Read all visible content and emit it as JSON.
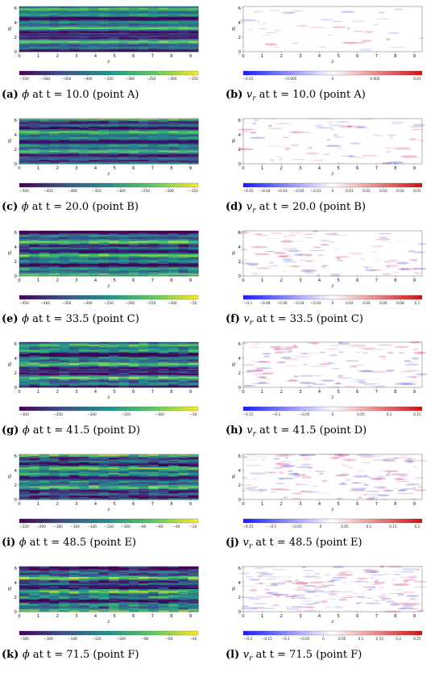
{
  "chart_data": [
    {
      "panel": "a",
      "type": "heatmap",
      "field": "phi",
      "title_prefix": "(a)",
      "var": "ϕ",
      "time": "10.0",
      "point": "A",
      "caption_rest": "at t = 10.0 (point A)",
      "xlabel": "z",
      "ylabel": "θ",
      "xticks": [
        "0",
        "1",
        "2",
        "3",
        "4",
        "5",
        "6",
        "7",
        "8",
        "9"
      ],
      "yticks": [
        "0",
        "2",
        "4",
        "6"
      ],
      "colorbar": {
        "colormap": "viridis",
        "ticks": [
          "−550",
          "−500",
          "−450",
          "−400",
          "−350",
          "−300",
          "−250",
          "−200",
          "−150"
        ]
      }
    },
    {
      "panel": "b",
      "type": "heatmap",
      "field": "v_r",
      "title_prefix": "(b)",
      "var": "v",
      "sub": "r",
      "caption_rest": "at t = 10.0 (point A)",
      "xlabel": "z",
      "ylabel": "θ",
      "xticks": [
        "0",
        "1",
        "2",
        "3",
        "4",
        "5",
        "6",
        "7",
        "8",
        "9"
      ],
      "yticks": [
        "0",
        "2",
        "4",
        "6"
      ],
      "colorbar": {
        "colormap": "bwr",
        "ticks": [
          "−0.01",
          "−0.005",
          "0",
          "0.005",
          "0.01"
        ]
      }
    },
    {
      "panel": "c",
      "type": "heatmap",
      "field": "phi",
      "title_prefix": "(c)",
      "var": "ϕ",
      "caption_rest": "at t = 20.0 (point B)",
      "xlabel": "z",
      "ylabel": "θ",
      "xticks": [
        "0",
        "1",
        "2",
        "3",
        "4",
        "5",
        "6",
        "7",
        "8",
        "9"
      ],
      "yticks": [
        "0",
        "2",
        "4",
        "6"
      ],
      "colorbar": {
        "colormap": "viridis",
        "ticks": [
          "−500",
          "−450",
          "−400",
          "−350",
          "−300",
          "−250",
          "−200",
          "−150"
        ]
      }
    },
    {
      "panel": "d",
      "type": "heatmap",
      "field": "v_r",
      "title_prefix": "(d)",
      "var": "v",
      "sub": "r",
      "caption_rest": "at t = 20.0 (point B)",
      "xlabel": "z",
      "ylabel": "θ",
      "xticks": [
        "0",
        "1",
        "2",
        "3",
        "4",
        "5",
        "6",
        "7",
        "8",
        "9"
      ],
      "yticks": [
        "0",
        "2",
        "4",
        "6"
      ],
      "colorbar": {
        "colormap": "bwr",
        "ticks": [
          "−0.05",
          "−0.04",
          "−0.03",
          "−0.02",
          "−0.01",
          "0",
          "0.01",
          "0.02",
          "0.03",
          "0.04",
          "0.05"
        ]
      }
    },
    {
      "panel": "e",
      "type": "heatmap",
      "field": "phi",
      "title_prefix": "(e)",
      "var": "ϕ",
      "caption_rest": "at t = 33.5 (point C)",
      "xlabel": "z",
      "ylabel": "θ",
      "xticks": [
        "0",
        "1",
        "2",
        "3",
        "4",
        "5",
        "6",
        "7",
        "8",
        "9"
      ],
      "yticks": [
        "0",
        "2",
        "4",
        "6"
      ],
      "colorbar": {
        "colormap": "viridis",
        "ticks": [
          "−450",
          "−400",
          "−350",
          "−300",
          "−250",
          "−200",
          "−150",
          "−100",
          "−50"
        ]
      }
    },
    {
      "panel": "f",
      "type": "heatmap",
      "field": "v_r",
      "title_prefix": "(f)",
      "var": "v",
      "sub": "r",
      "caption_rest": "at t = 33.5 (point C)",
      "xlabel": "z",
      "ylabel": "θ",
      "xticks": [
        "0",
        "1",
        "2",
        "3",
        "4",
        "5",
        "6",
        "7",
        "8",
        "9"
      ],
      "yticks": [
        "0",
        "2",
        "4",
        "6"
      ],
      "colorbar": {
        "colormap": "bwr",
        "ticks": [
          "−0.1",
          "−0.08",
          "−0.06",
          "−0.04",
          "−0.02",
          "0",
          "0.02",
          "0.04",
          "0.06",
          "0.08",
          "0.1"
        ]
      }
    },
    {
      "panel": "g",
      "type": "heatmap",
      "field": "phi",
      "title_prefix": "(g)",
      "var": "ϕ",
      "caption_rest": "at t = 41.5 (point D)",
      "xlabel": "z",
      "ylabel": "θ",
      "xticks": [
        "0",
        "1",
        "2",
        "3",
        "4",
        "5",
        "6",
        "7",
        "8",
        "9"
      ],
      "yticks": [
        "0",
        "2",
        "4",
        "6"
      ],
      "colorbar": {
        "colormap": "viridis",
        "ticks": [
          "−300",
          "−250",
          "−200",
          "−150",
          "−100",
          "−50"
        ]
      }
    },
    {
      "panel": "h",
      "type": "heatmap",
      "field": "v_r",
      "title_prefix": "(h)",
      "var": "v",
      "sub": "r",
      "caption_rest": "at t = 41.5 (point D)",
      "xlabel": "z",
      "ylabel": "θ",
      "xticks": [
        "0",
        "1",
        "2",
        "3",
        "4",
        "5",
        "6",
        "7",
        "8",
        "9"
      ],
      "yticks": [
        "0",
        "2",
        "4",
        "6"
      ],
      "colorbar": {
        "colormap": "bwr",
        "ticks": [
          "−0.15",
          "−0.1",
          "−0.05",
          "0",
          "0.05",
          "0.1",
          "0.15"
        ]
      }
    },
    {
      "panel": "i",
      "type": "heatmap",
      "field": "phi",
      "title_prefix": "(i)",
      "var": "ϕ",
      "caption_rest": "at t = 48.5 (point E)",
      "xlabel": "z",
      "ylabel": "θ",
      "xticks": [
        "0",
        "1",
        "2",
        "3",
        "4",
        "5",
        "6",
        "7",
        "8",
        "9"
      ],
      "yticks": [
        "0",
        "2",
        "4",
        "6"
      ],
      "colorbar": {
        "colormap": "viridis",
        "ticks": [
          "−220",
          "−200",
          "−180",
          "−160",
          "−140",
          "−120",
          "−100",
          "−80",
          "−60",
          "−40",
          "−20"
        ]
      }
    },
    {
      "panel": "j",
      "type": "heatmap",
      "field": "v_r",
      "title_prefix": "(j)",
      "var": "v",
      "sub": "r",
      "caption_rest": "at t = 48.5 (point E)",
      "xlabel": "z",
      "ylabel": "θ",
      "xticks": [
        "0",
        "1",
        "2",
        "3",
        "4",
        "5",
        "6",
        "7",
        "8",
        "9"
      ],
      "yticks": [
        "0",
        "2",
        "4",
        "6"
      ],
      "colorbar": {
        "colormap": "bwr",
        "ticks": [
          "−0.15",
          "−0.1",
          "−0.05",
          "0",
          "0.05",
          "0.1",
          "0.15",
          "0.2"
        ]
      }
    },
    {
      "panel": "k",
      "type": "heatmap",
      "field": "phi",
      "title_prefix": "(k)",
      "var": "ϕ",
      "caption_rest": "at t = 71.5 (point F)",
      "xlabel": "z",
      "ylabel": "θ",
      "xticks": [
        "0",
        "1",
        "2",
        "3",
        "4",
        "5",
        "6",
        "7",
        "8",
        "9"
      ],
      "yticks": [
        "0",
        "2",
        "4",
        "6"
      ],
      "colorbar": {
        "colormap": "viridis",
        "ticks": [
          "−180",
          "−160",
          "−140",
          "−120",
          "−100",
          "−80",
          "−60",
          "−40"
        ]
      }
    },
    {
      "panel": "l",
      "type": "heatmap",
      "field": "v_r",
      "title_prefix": "(l)",
      "var": "v",
      "sub": "r",
      "caption_rest": "at t = 71.5 (point F)",
      "xlabel": "z",
      "ylabel": "θ",
      "xticks": [
        "0",
        "1",
        "2",
        "3",
        "4",
        "5",
        "6",
        "7",
        "8",
        "9"
      ],
      "yticks": [
        "0",
        "2",
        "4",
        "6"
      ],
      "colorbar": {
        "colormap": "bwr",
        "ticks": [
          "−0.2",
          "−0.15",
          "−0.1",
          "−0.05",
          "0",
          "0.05",
          "0.1",
          "0.15",
          "0.2",
          "0.25"
        ]
      }
    }
  ]
}
